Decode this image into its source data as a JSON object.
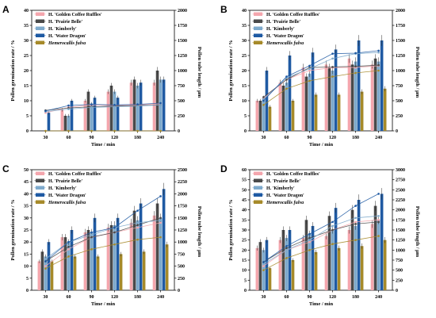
{
  "colors": {
    "s1": "#f4a6ad",
    "s2": "#4a4a4a",
    "s3": "#7eaacc",
    "s4": "#1f5aa3",
    "s5": "#a68a2a"
  },
  "chart_data": [
    {
      "type": "bar",
      "panel_label": "A",
      "categories": [
        "30",
        "60",
        "90",
        "120",
        "180",
        "240"
      ],
      "xlabel": "Time / min",
      "ylabel": "Pollen germination rate / %",
      "y2label": "Pollen tube length / μm",
      "yticks": [
        "0",
        "5",
        "10",
        "15",
        "20",
        "25",
        "30",
        "35",
        "40"
      ],
      "y2ticks": [
        "0",
        "250",
        "500",
        "750",
        "1000",
        "1250",
        "1500",
        "1750",
        "2000"
      ],
      "ylim": [
        0,
        40
      ],
      "y2lim": [
        0,
        2000
      ],
      "series": [
        {
          "name": "H. 'Golden Coffee Ruffles'",
          "values": [
            0,
            7,
            10,
            13,
            16,
            16
          ]
        },
        {
          "name": "H. 'Prairie Belle'",
          "values": [
            0,
            5,
            13,
            15,
            17,
            20
          ]
        },
        {
          "name": "H. 'Kimberly'",
          "values": [
            0,
            5,
            9,
            13,
            15,
            17
          ]
        },
        {
          "name": "H. 'Water Dragon'",
          "values": [
            6,
            10,
            11,
            11,
            16,
            17
          ]
        },
        {
          "name": "Hemerocallis fulva",
          "values": [
            0,
            0,
            0,
            0,
            0,
            0
          ]
        }
      ],
      "lines": [
        [
          300,
          390,
          430,
          420,
          430,
          450
        ],
        [
          340,
          380,
          400,
          410,
          420,
          430
        ],
        [
          320,
          360,
          390,
          400,
          410,
          430
        ],
        [
          330,
          420,
          440,
          430,
          440,
          460
        ],
        [
          0,
          0,
          0,
          0,
          0,
          0
        ]
      ]
    },
    {
      "type": "bar",
      "panel_label": "B",
      "categories": [
        "30",
        "60",
        "90",
        "120",
        "180",
        "240"
      ],
      "xlabel": "Time / min",
      "ylabel": "Pollen germination rate / %",
      "y2label": "Pollen tube length / μm",
      "yticks": [
        "0",
        "5",
        "10",
        "15",
        "20",
        "25",
        "30",
        "35",
        "40"
      ],
      "y2ticks": [
        "0",
        "250",
        "500",
        "750",
        "1000",
        "1250",
        "1500",
        "1750",
        "2000"
      ],
      "ylim": [
        0,
        40
      ],
      "y2lim": [
        0,
        2000
      ],
      "series": [
        {
          "name": "H. 'Golden Coffee Ruffles'",
          "values": [
            10,
            16,
            21,
            22,
            24,
            22
          ]
        },
        {
          "name": "H. 'Prairie Belle'",
          "values": [
            10,
            15,
            18,
            21,
            22,
            24
          ]
        },
        {
          "name": "H. 'Kimberly'",
          "values": [
            11,
            16,
            19,
            20,
            23,
            23
          ]
        },
        {
          "name": "H. 'Water Dragon'",
          "values": [
            20,
            25,
            26,
            27,
            30,
            30
          ]
        },
        {
          "name": "Hemerocallis fulva",
          "values": [
            8,
            10,
            12,
            12,
            13,
            14
          ]
        }
      ],
      "lines": [
        [
          540,
          850,
          1000,
          1050,
          1050,
          1080
        ],
        [
          560,
          850,
          1050,
          1060,
          1070,
          1090
        ],
        [
          520,
          880,
          1030,
          1200,
          1280,
          1300
        ],
        [
          500,
          900,
          1080,
          1280,
          1290,
          1330
        ],
        [
          430,
          700,
          830,
          900,
          960,
          1000
        ]
      ]
    },
    {
      "type": "bar",
      "panel_label": "C",
      "categories": [
        "30",
        "60",
        "90",
        "120",
        "180",
        "240"
      ],
      "xlabel": "Time / min",
      "ylabel": "Pollen germination rate / %",
      "y2label": "Pollen tube length / μm",
      "yticks": [
        "0",
        "5",
        "10",
        "15",
        "20",
        "25",
        "30",
        "35",
        "40",
        "45",
        "50"
      ],
      "y2ticks": [
        "0",
        "250",
        "500",
        "750",
        "1000",
        "1250",
        "1500",
        "1750",
        "2000",
        "2250",
        "2500"
      ],
      "ylim": [
        0,
        50
      ],
      "y2lim": [
        0,
        2500
      ],
      "series": [
        {
          "name": "H. 'Golden Coffee Ruffles'",
          "values": [
            12,
            22,
            24,
            26,
            28,
            31
          ]
        },
        {
          "name": "H. 'Prairie Belle'",
          "values": [
            16,
            22,
            25,
            27,
            33,
            36
          ]
        },
        {
          "name": "H. 'Kimberly'",
          "values": [
            14,
            20,
            24,
            27,
            29,
            30
          ]
        },
        {
          "name": "H. 'Water Dragon'",
          "values": [
            20,
            25,
            30,
            30,
            36,
            42
          ]
        },
        {
          "name": "Hemerocallis fulva",
          "values": [
            12,
            14,
            14,
            15,
            16,
            19
          ]
        }
      ],
      "lines": [
        [
          500,
          850,
          1100,
          1200,
          1300,
          1400
        ],
        [
          600,
          900,
          1100,
          1200,
          1350,
          1500
        ],
        [
          650,
          1000,
          1150,
          1300,
          1400,
          1450
        ],
        [
          600,
          1000,
          1200,
          1300,
          1650,
          1950
        ],
        [
          450,
          700,
          850,
          950,
          1050,
          1100
        ]
      ]
    },
    {
      "type": "bar",
      "panel_label": "D",
      "categories": [
        "30",
        "60",
        "90",
        "120",
        "180",
        "240"
      ],
      "xlabel": "Time / min",
      "ylabel": "Pollen germination rate / %",
      "y2label": "Pollen tube length / μm",
      "yticks": [
        "0",
        "5",
        "10",
        "15",
        "20",
        "25",
        "30",
        "35",
        "40",
        "45",
        "50",
        "55",
        "60"
      ],
      "y2ticks": [
        "0",
        "250",
        "500",
        "750",
        "1000",
        "1250",
        "1500",
        "1750",
        "2000",
        "2250",
        "2500",
        "2750",
        "3000"
      ],
      "ylim": [
        0,
        60
      ],
      "y2lim": [
        0,
        3000
      ],
      "series": [
        {
          "name": "H. 'Golden Coffee Ruffles'",
          "values": [
            21,
            25,
            26,
            27,
            30,
            33
          ]
        },
        {
          "name": "H. 'Prairie Belle'",
          "values": [
            24,
            30,
            35,
            37,
            40,
            42
          ]
        },
        {
          "name": "H. 'Kimberly'",
          "values": [
            20,
            26,
            28,
            30,
            32,
            35
          ]
        },
        {
          "name": "H. 'Water Dragon'",
          "values": [
            25,
            30,
            32,
            41,
            45,
            48
          ]
        },
        {
          "name": "Hemerocallis fulva",
          "values": [
            11,
            15,
            19,
            21,
            22,
            25
          ]
        }
      ],
      "lines": [
        [
          600,
          1000,
          1200,
          1500,
          1700,
          1750
        ],
        [
          700,
          1050,
          1300,
          1500,
          1650,
          1700
        ],
        [
          650,
          1000,
          1250,
          1600,
          1800,
          1850
        ],
        [
          700,
          1100,
          1400,
          1700,
          2100,
          2400
        ],
        [
          500,
          800,
          1000,
          1150,
          1250,
          1350
        ]
      ]
    }
  ]
}
